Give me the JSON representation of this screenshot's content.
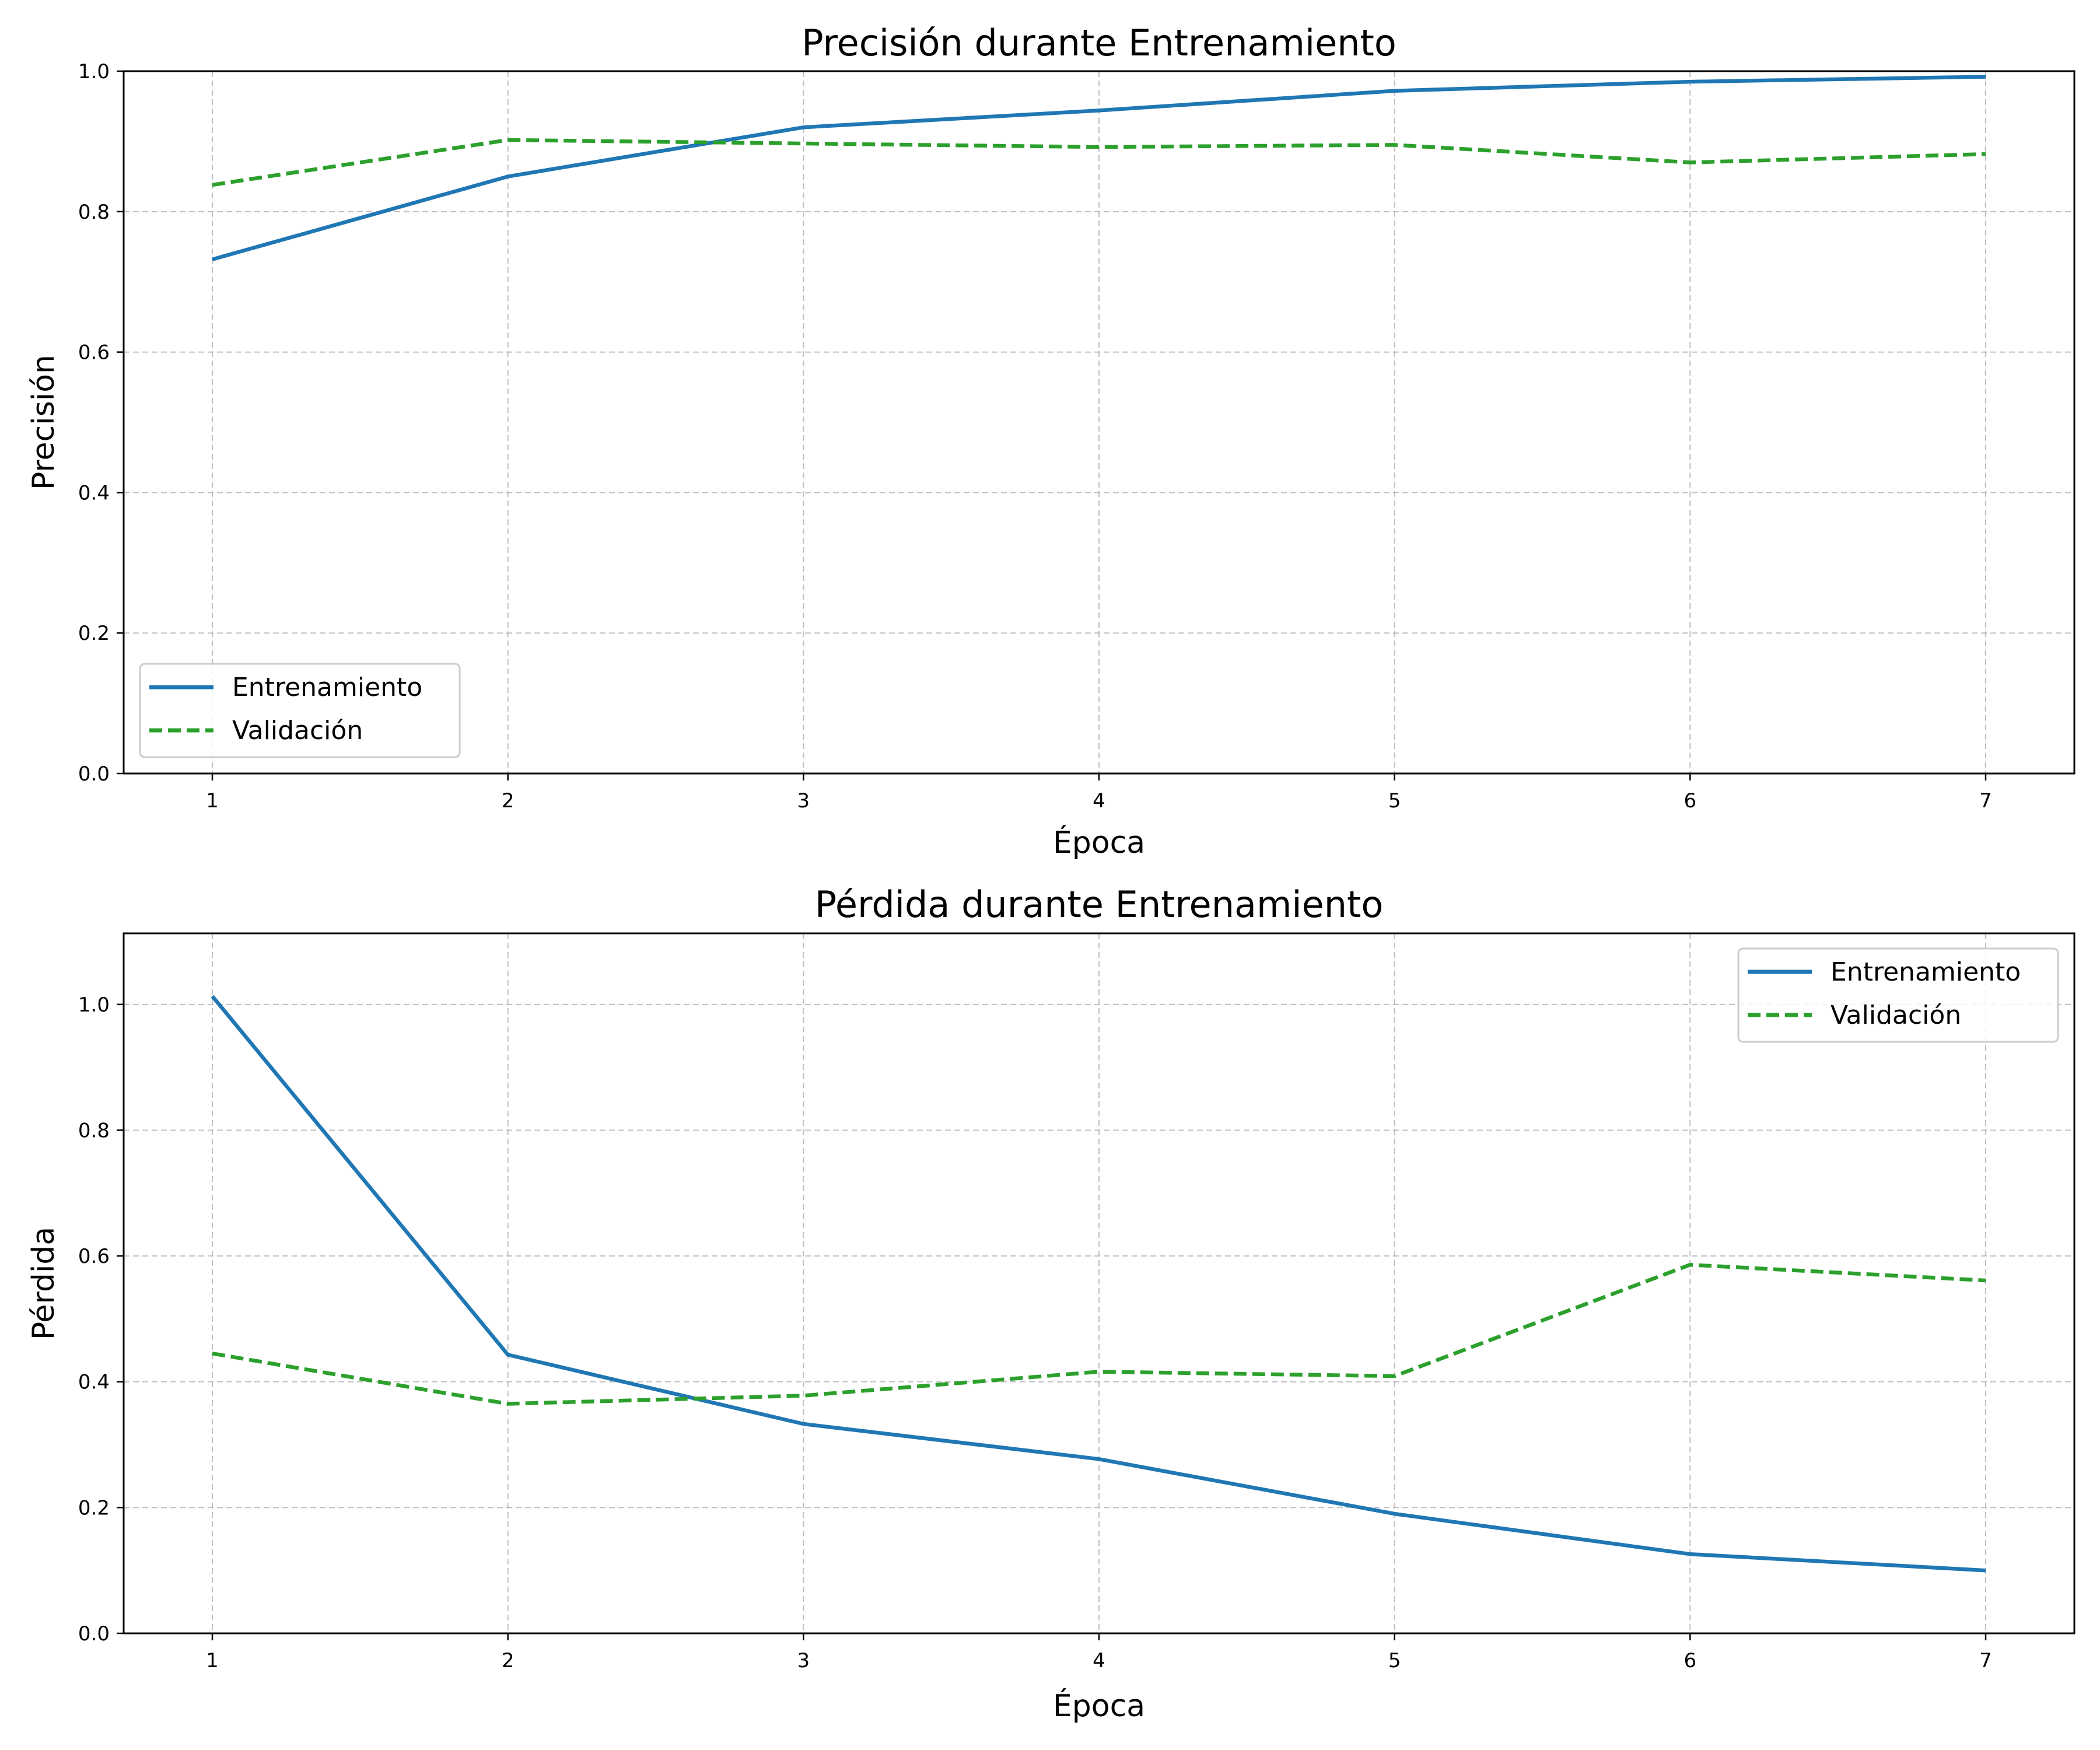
{
  "colors": {
    "train": "#1f77b4",
    "val": "#2ca02c",
    "grid": "#b0b0b0"
  },
  "chart_data": [
    {
      "type": "line",
      "title": "Precisión durante Entrenamiento",
      "xlabel": "Época",
      "ylabel": "Precisión",
      "x": [
        1,
        2,
        3,
        4,
        5,
        6,
        7
      ],
      "xlim": [
        0.7,
        7.3
      ],
      "ylim": [
        0,
        1.0
      ],
      "yticks": [
        0.0,
        0.2,
        0.4,
        0.6,
        0.8,
        1.0
      ],
      "ytick_labels": [
        "0.0",
        "0.2",
        "0.4",
        "0.6",
        "0.8",
        "1.0"
      ],
      "xtick_labels": [
        "1",
        "2",
        "3",
        "4",
        "5",
        "6",
        "7"
      ],
      "grid": true,
      "legend": "lower-left",
      "series": [
        {
          "name": "Entrenamiento",
          "values": [
            0.732,
            0.85,
            0.92,
            0.944,
            0.972,
            0.985,
            0.992
          ],
          "style": "solid",
          "color": "#1f77b4"
        },
        {
          "name": "Validación",
          "values": [
            0.838,
            0.902,
            0.897,
            0.892,
            0.895,
            0.87,
            0.882
          ],
          "style": "dashed",
          "color": "#2ca02c"
        }
      ]
    },
    {
      "type": "line",
      "title": "Pérdida durante Entrenamiento",
      "xlabel": "Época",
      "ylabel": "Pérdida",
      "x": [
        1,
        2,
        3,
        4,
        5,
        6,
        7
      ],
      "xlim": [
        0.7,
        7.3
      ],
      "ylim": [
        0,
        1.113
      ],
      "yticks": [
        0.0,
        0.2,
        0.4,
        0.6,
        0.8,
        1.0
      ],
      "ytick_labels": [
        "0.0",
        "0.2",
        "0.4",
        "0.6",
        "0.8",
        "1.0"
      ],
      "xtick_labels": [
        "1",
        "2",
        "3",
        "4",
        "5",
        "6",
        "7"
      ],
      "grid": true,
      "legend": "upper-right",
      "series": [
        {
          "name": "Entrenamiento",
          "values": [
            1.013,
            0.443,
            0.333,
            0.277,
            0.19,
            0.126,
            0.1
          ],
          "style": "solid",
          "color": "#1f77b4"
        },
        {
          "name": "Validación",
          "values": [
            0.445,
            0.365,
            0.378,
            0.416,
            0.409,
            0.586,
            0.561
          ],
          "style": "dashed",
          "color": "#2ca02c"
        }
      ]
    }
  ]
}
